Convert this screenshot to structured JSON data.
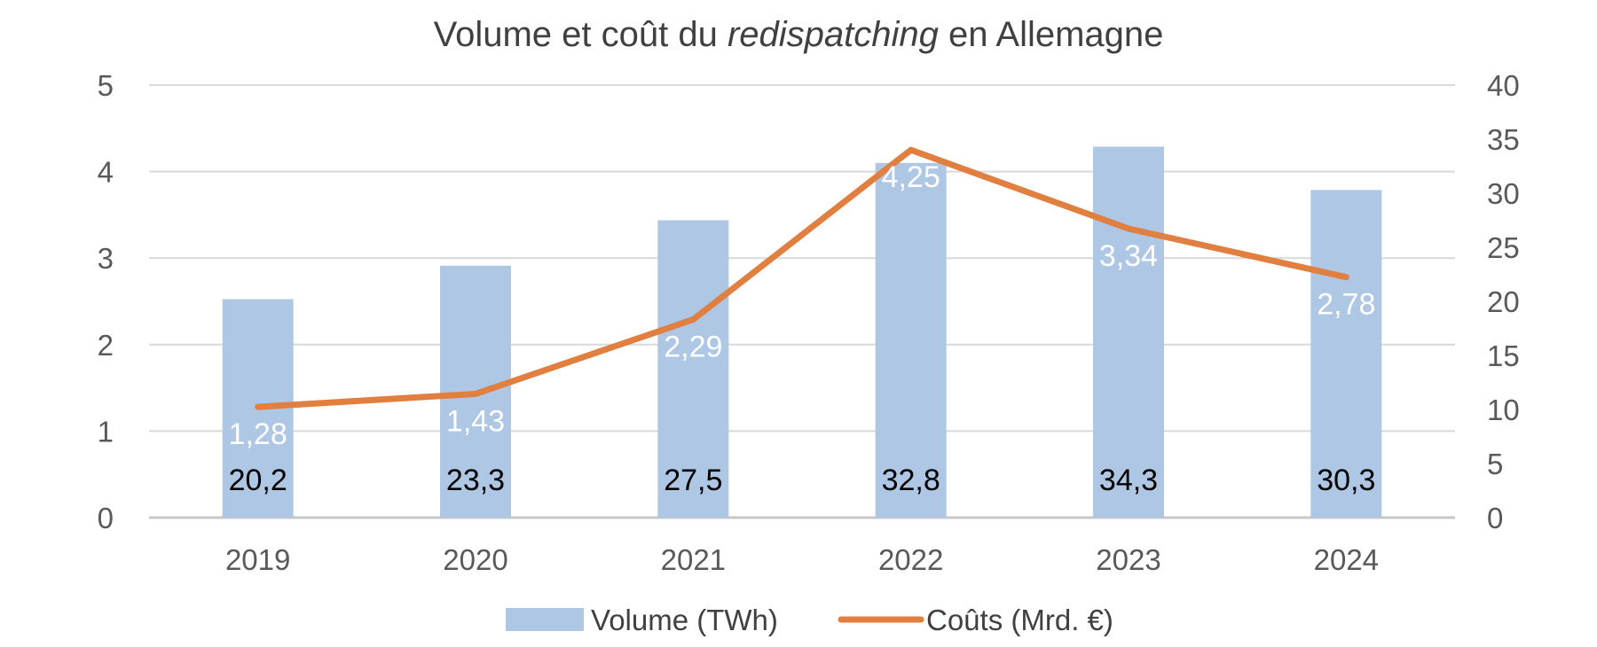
{
  "chart_data": {
    "type": "bar",
    "title": {
      "prefix": "Volume et coût du ",
      "italic": "redispatching",
      "suffix": " en Allemagne"
    },
    "categories": [
      "2019",
      "2020",
      "2021",
      "2022",
      "2023",
      "2024"
    ],
    "series": [
      {
        "name": "Volume (TWh)",
        "type": "bar",
        "axis": "right",
        "values": [
          20.2,
          23.3,
          27.5,
          32.8,
          34.3,
          30.3
        ],
        "labels": [
          "20,2",
          "23,3",
          "27,5",
          "32,8",
          "34,3",
          "30,3"
        ],
        "color": "#aec7e5"
      },
      {
        "name": "Coûts (Mrd. €)",
        "type": "line",
        "axis": "left",
        "values": [
          1.28,
          1.43,
          2.29,
          4.25,
          3.34,
          2.78
        ],
        "labels": [
          "1,28",
          "1,43",
          "2,29",
          "4,25",
          "3,34",
          "2,78"
        ],
        "color": "#e07f3f"
      }
    ],
    "y_left": {
      "min": 0,
      "max": 5,
      "ticks": [
        "0",
        "1",
        "2",
        "3",
        "4",
        "5"
      ]
    },
    "y_right": {
      "min": 0,
      "max": 40,
      "ticks": [
        "0",
        "5",
        "10",
        "15",
        "20",
        "25",
        "30",
        "35",
        "40"
      ]
    },
    "grid": true,
    "legend_position": "bottom"
  }
}
